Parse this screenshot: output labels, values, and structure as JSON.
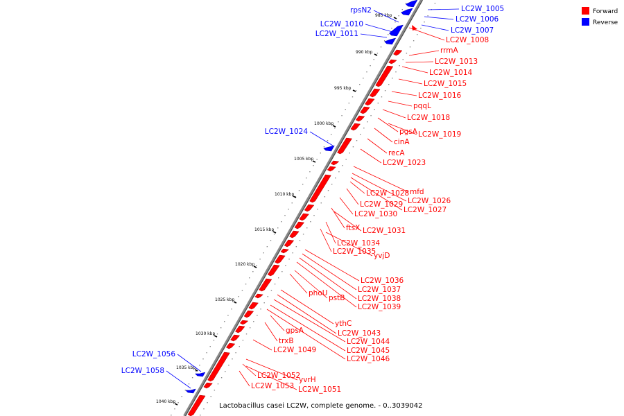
{
  "caption": "Lactobacillus casei LC2W, complete genome. - 0..3039042",
  "legend": [
    {
      "label": "Forward",
      "color": "#ff0000"
    },
    {
      "label": "Reverse",
      "color": "#0000ff"
    }
  ],
  "colors": {
    "forward": "#ff0000",
    "reverse": "#0000ff",
    "backbone": "#888888"
  },
  "ticks": [
    "985 kbp",
    "990 kbp",
    "995 kbp",
    "1000 kbp",
    "1005 kbp",
    "1010 kbp",
    "1015 kbp",
    "1020 kbp",
    "1025 kbp",
    "1030 kbp",
    "1035 kbp",
    "1040 kbp"
  ],
  "reverse_labels": [
    "LC2W_1005",
    "LC2W_1006",
    "LC2W_1007",
    "rpsN2",
    "LC2W_1010",
    "LC2W_1011",
    "LC2W_1024",
    "LC2W_1056",
    "LC2W_1058"
  ],
  "forward_labels": [
    "LC2W_1008",
    "rrmA",
    "LC2W_1013",
    "LC2W_1014",
    "LC2W_1015",
    "LC2W_1016",
    "pqqL",
    "LC2W_1018",
    "pgsA",
    "LC2W_1019",
    "cinA",
    "recA",
    "LC2W_1023",
    "mfd",
    "LC2W_1028",
    "LC2W_1026",
    "LC2W_1029",
    "LC2W_1027",
    "LC2W_1030",
    "ftsX",
    "LC2W_1031",
    "LC2W_1034",
    "LC2W_1035",
    "yvjD",
    "LC2W_1036",
    "LC2W_1037",
    "LC2W_1038",
    "LC2W_1039",
    "phoU",
    "pstB",
    "ythC",
    "LC2W_1043",
    "LC2W_1044",
    "LC2W_1045",
    "LC2W_1046",
    "gpsA",
    "trxB",
    "LC2W_1049",
    "LC2W_1052",
    "yvrH",
    "LC2W_1053",
    "LC2W_1051"
  ]
}
